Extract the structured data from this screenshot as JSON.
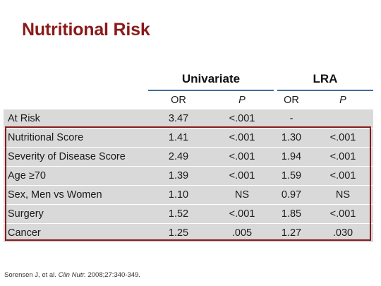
{
  "title": "Nutritional Risk",
  "groups": [
    {
      "label": "Univariate"
    },
    {
      "label": "LRA"
    }
  ],
  "header": [
    "OR",
    "P",
    "OR",
    "P"
  ],
  "rows": [
    {
      "label": "At Risk",
      "values": [
        "3.47",
        "<.001",
        "-",
        ""
      ]
    },
    {
      "label": "Nutritional Score",
      "values": [
        "1.41",
        "<.001",
        "1.30",
        "<.001"
      ]
    },
    {
      "label": "Severity of Disease Score",
      "values": [
        "2.49",
        "<.001",
        "1.94",
        "<.001"
      ]
    },
    {
      "label": "Age ≥70",
      "values": [
        "1.39",
        "<.001",
        "1.59",
        "<.001"
      ]
    },
    {
      "label": "Sex, Men vs Women",
      "values": [
        "1.10",
        "NS",
        "0.97",
        "NS"
      ]
    },
    {
      "label": "Surgery",
      "values": [
        "1.52",
        "<.001",
        "1.85",
        "<.001"
      ]
    },
    {
      "label": "Cancer",
      "values": [
        "1.25",
        ".005",
        "1.27",
        ".030"
      ]
    }
  ],
  "citation": {
    "authors": "Sorensen J, et al. ",
    "journal": "Clin Nutr.",
    "details": " 2008;27:340-349."
  },
  "colors": {
    "title": "#8b1a1a",
    "rule": "#3f6f9a",
    "highlight": "#8b1a1a",
    "shade": "#d9d9d9"
  }
}
